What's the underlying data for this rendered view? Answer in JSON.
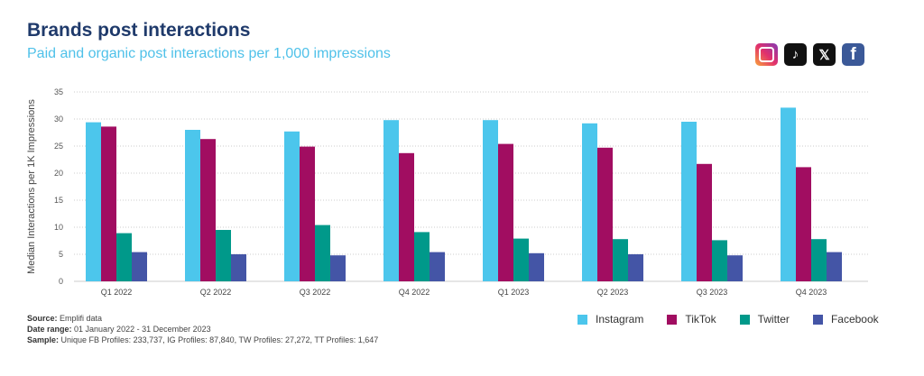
{
  "title": "Brands post interactions",
  "subtitle": "Paid and organic post interactions per 1,000 impressions",
  "icons": [
    "instagram-icon",
    "tiktok-icon",
    "x-icon",
    "facebook-icon"
  ],
  "footer": {
    "source_label": "Source:",
    "source": "Emplifi data",
    "date_label": "Date range:",
    "date": "01 January 2022 - 31 December 2023",
    "sample_label": "Sample:",
    "sample": "Unique FB Profiles: 233,737, IG Profiles: 87,840, TW Profiles: 27,272, TT Profiles: 1,647"
  },
  "chart_data": {
    "type": "bar",
    "title": "",
    "xlabel": "",
    "ylabel": "Median Interactions per 1K Impressions",
    "ylim": [
      0,
      35
    ],
    "yticks": [
      0,
      5,
      10,
      15,
      20,
      25,
      30,
      35
    ],
    "grid": true,
    "legend": "bottom-right",
    "categories": [
      "Q1 2022",
      "Q2 2022",
      "Q3 2022",
      "Q4 2022",
      "Q1 2023",
      "Q2 2023",
      "Q3 2023",
      "Q4 2023"
    ],
    "series": [
      {
        "name": "Instagram",
        "color": "#4cc6ec",
        "values": [
          29.4,
          28.0,
          27.7,
          29.8,
          29.8,
          29.2,
          29.5,
          32.1
        ]
      },
      {
        "name": "TikTok",
        "color": "#a10d61",
        "values": [
          28.6,
          26.3,
          24.9,
          23.7,
          25.4,
          24.7,
          21.7,
          21.1
        ]
      },
      {
        "name": "Twitter",
        "color": "#00998a",
        "values": [
          8.9,
          9.5,
          10.4,
          9.1,
          7.9,
          7.8,
          7.6,
          7.8
        ]
      },
      {
        "name": "Facebook",
        "color": "#4455a6",
        "values": [
          5.4,
          5.0,
          4.8,
          5.4,
          5.2,
          5.0,
          4.8,
          5.4
        ]
      }
    ]
  }
}
